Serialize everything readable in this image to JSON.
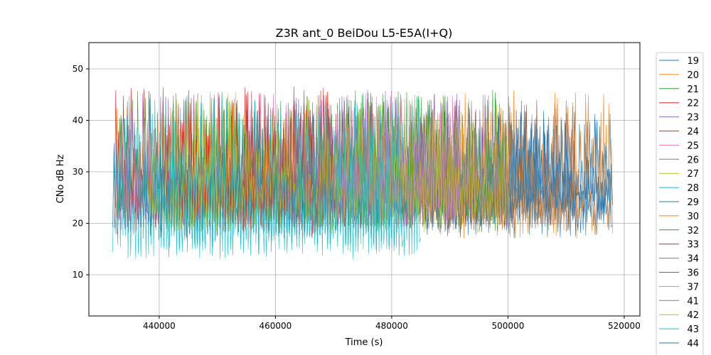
{
  "chart_data": {
    "type": "line",
    "title": "Z3R ant_0 BeiDou L5-E5A(I+Q)",
    "xlabel": "Time (s)",
    "ylabel": "CNo dB Hz",
    "xlim": [
      427900,
      522700
    ],
    "ylim": [
      2,
      55.1
    ],
    "xticks": [
      440000,
      460000,
      480000,
      500000,
      520000
    ],
    "xtick_labels": [
      "440000",
      "460000",
      "480000",
      "500000",
      "520000"
    ],
    "yticks": [
      10,
      20,
      30,
      40,
      50
    ],
    "ytick_labels": [
      "10",
      "20",
      "30",
      "40",
      "50"
    ],
    "grid": true,
    "legend_placement": "outside-right",
    "note": "Dense noisy traces; each series summarized by visible time span and CNo range, points synthesized between them",
    "series": [
      {
        "name": "19",
        "color": "#1f77b4",
        "x_range": [
          432000,
          518000
        ],
        "y_range": [
          15,
          42
        ]
      },
      {
        "name": "20",
        "color": "#ff7f0e",
        "x_range": [
          432500,
          478000
        ],
        "y_range": [
          17,
          44
        ]
      },
      {
        "name": "21",
        "color": "#2ca02c",
        "x_range": [
          433000,
          500000
        ],
        "y_range": [
          17,
          46
        ]
      },
      {
        "name": "22",
        "color": "#d62728",
        "x_range": [
          432300,
          470000
        ],
        "y_range": [
          15,
          47
        ]
      },
      {
        "name": "23",
        "color": "#9467bd",
        "x_range": [
          433000,
          480000
        ],
        "y_range": [
          16,
          46
        ]
      },
      {
        "name": "24",
        "color": "#8c564b",
        "x_range": [
          440000,
          512000
        ],
        "y_range": [
          16,
          44
        ]
      },
      {
        "name": "25",
        "color": "#e377c2",
        "x_range": [
          455000,
          485000
        ],
        "y_range": [
          17,
          46
        ]
      },
      {
        "name": "26",
        "color": "#7f7f7f",
        "x_range": [
          460000,
          505000
        ],
        "y_range": [
          17,
          45
        ]
      },
      {
        "name": "27",
        "color": "#bcbd22",
        "x_range": [
          438000,
          495000
        ],
        "y_range": [
          16,
          46
        ]
      },
      {
        "name": "28",
        "color": "#17becf",
        "x_range": [
          432000,
          485000
        ],
        "y_range": [
          11,
          45
        ]
      },
      {
        "name": "29",
        "color": "#1f77b4",
        "x_range": [
          495000,
          518000
        ],
        "y_range": [
          18,
          42
        ]
      },
      {
        "name": "30",
        "color": "#ff7f0e",
        "x_range": [
          488000,
          518000
        ],
        "y_range": [
          15,
          46
        ]
      },
      {
        "name": "32",
        "color": "#2ca02c",
        "x_range": [
          470000,
          500000
        ],
        "y_range": [
          16,
          46
        ]
      },
      {
        "name": "33",
        "color": "#d62728",
        "x_range": [
          440000,
          470000
        ],
        "y_range": [
          16,
          47
        ]
      },
      {
        "name": "34",
        "color": "#9467bd",
        "x_range": [
          462000,
          500000
        ],
        "y_range": [
          17,
          46
        ]
      },
      {
        "name": "36",
        "color": "#8c564b",
        "x_range": [
          450000,
          475000
        ],
        "y_range": [
          17,
          44
        ]
      },
      {
        "name": "37",
        "color": "#e377c2",
        "x_range": [
          470000,
          492000
        ],
        "y_range": [
          17,
          46
        ]
      },
      {
        "name": "41",
        "color": "#7f7f7f",
        "x_range": [
          475000,
          512000
        ],
        "y_range": [
          17,
          44
        ]
      },
      {
        "name": "42",
        "color": "#bcbd22",
        "x_range": [
          442000,
          500000
        ],
        "y_range": [
          17,
          45
        ]
      },
      {
        "name": "43",
        "color": "#17becf",
        "x_range": [
          440000,
          482000
        ],
        "y_range": [
          12,
          45
        ]
      },
      {
        "name": "44",
        "color": "#1f77b4",
        "x_range": [
          500000,
          518000
        ],
        "y_range": [
          18,
          40
        ]
      }
    ]
  }
}
